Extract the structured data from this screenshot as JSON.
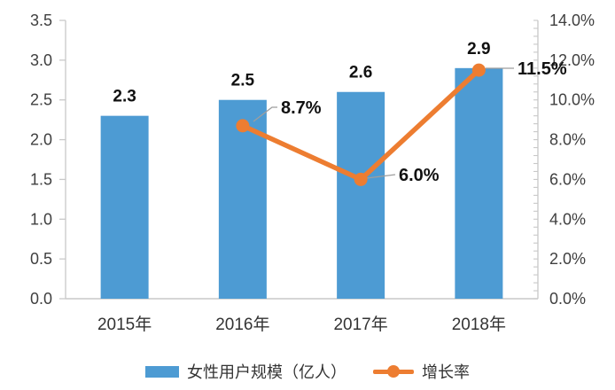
{
  "chart_data": {
    "type": "bar",
    "title": "",
    "subtitle": "",
    "categories": [
      "2015年",
      "2016年",
      "2017年",
      "2018年"
    ],
    "series": [
      {
        "name": "女性用户规模（亿人）",
        "type": "bar",
        "axis": "left",
        "color": "#4D9BD3",
        "values": [
          2.3,
          2.5,
          2.6,
          2.9
        ],
        "data_labels": [
          "2.3",
          "2.5",
          "2.6",
          "2.9"
        ]
      },
      {
        "name": "增长率",
        "type": "line",
        "axis": "right",
        "color": "#ED7D31",
        "values": [
          null,
          8.7,
          6.0,
          11.5
        ],
        "data_labels": [
          null,
          "8.7%",
          "6.0%",
          "11.5%"
        ]
      }
    ],
    "left_axis": {
      "min": 0,
      "max": 3.5,
      "step": 0.5,
      "tick_labels": [
        "0.0",
        "0.5",
        "1.0",
        "1.5",
        "2.0",
        "2.5",
        "3.0",
        "3.5"
      ]
    },
    "right_axis": {
      "min": 0,
      "max": 14,
      "step": 2,
      "minor_step": 0.4,
      "tick_labels": [
        "0.0%",
        "2.0%",
        "4.0%",
        "6.0%",
        "8.0%",
        "10.0%",
        "12.0%",
        "14.0%"
      ]
    },
    "legend_position": "bottom",
    "grid": false,
    "colors": {
      "bar": "#4D9BD3",
      "line": "#ED7D31",
      "axis_line": "#C8C8C8",
      "leader_line": "#9E9E9E",
      "tick_text": "#3F3F3F",
      "category_text": "#333333",
      "data_label_text": "#111111"
    }
  }
}
